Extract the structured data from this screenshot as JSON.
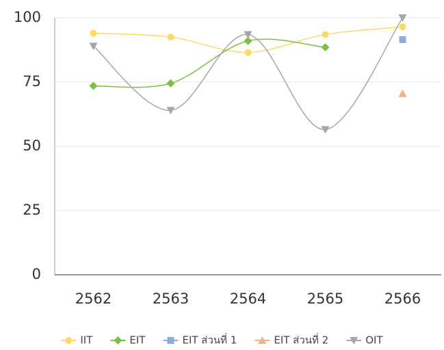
{
  "chart_data": {
    "type": "line",
    "categories": [
      "2562",
      "2563",
      "2564",
      "2565",
      "2566"
    ],
    "series": [
      {
        "name": "IIT",
        "color": "#ffd966",
        "marker": "circle",
        "values": [
          94,
          92.5,
          86.5,
          93.5,
          96.5
        ]
      },
      {
        "name": "EIT",
        "color": "#7ac143",
        "marker": "diamond",
        "values": [
          73.5,
          74.5,
          91,
          88.5,
          null
        ]
      },
      {
        "name": "EIT ส่วนที่ 1",
        "color": "#8faadc",
        "marker": "square",
        "values": [
          null,
          null,
          null,
          null,
          91.5
        ]
      },
      {
        "name": "EIT ส่วนที่ 2",
        "color": "#f4b183",
        "marker": "triangle",
        "values": [
          null,
          null,
          null,
          null,
          70.5
        ]
      },
      {
        "name": "OIT",
        "color": "#a6a6a6",
        "marker": "triangle-down",
        "values": [
          89,
          64,
          93.5,
          56.5,
          100
        ]
      }
    ],
    "ylim": [
      0,
      100
    ],
    "yticks": [
      0,
      25,
      50,
      75,
      100
    ],
    "grid": true,
    "smooth": true,
    "legend": "bottom"
  }
}
